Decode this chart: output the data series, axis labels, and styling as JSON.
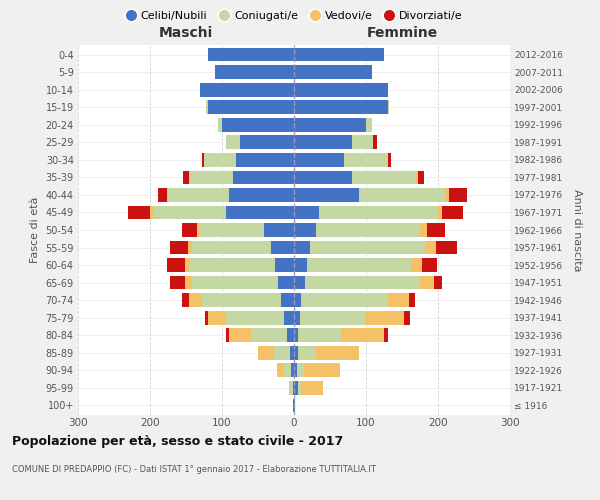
{
  "age_groups": [
    "100+",
    "95-99",
    "90-94",
    "85-89",
    "80-84",
    "75-79",
    "70-74",
    "65-69",
    "60-64",
    "55-59",
    "50-54",
    "45-49",
    "40-44",
    "35-39",
    "30-34",
    "25-29",
    "20-24",
    "15-19",
    "10-14",
    "5-9",
    "0-4"
  ],
  "birth_years": [
    "≤ 1916",
    "1917-1921",
    "1922-1926",
    "1927-1931",
    "1932-1936",
    "1937-1941",
    "1942-1946",
    "1947-1951",
    "1952-1956",
    "1957-1961",
    "1962-1966",
    "1967-1971",
    "1972-1976",
    "1977-1981",
    "1982-1986",
    "1987-1991",
    "1992-1996",
    "1997-2001",
    "2002-2006",
    "2007-2011",
    "2012-2016"
  ],
  "maschi_celibe": [
    1,
    2,
    4,
    6,
    10,
    14,
    18,
    22,
    26,
    32,
    42,
    95,
    90,
    85,
    80,
    75,
    100,
    120,
    130,
    110,
    120
  ],
  "maschi_coniugato": [
    0,
    3,
    10,
    22,
    50,
    80,
    110,
    120,
    120,
    110,
    90,
    100,
    85,
    60,
    45,
    20,
    5,
    2,
    0,
    0,
    0
  ],
  "maschi_vedovo": [
    0,
    2,
    10,
    22,
    30,
    25,
    18,
    10,
    5,
    5,
    3,
    5,
    2,
    1,
    0,
    0,
    0,
    0,
    0,
    0,
    0
  ],
  "maschi_divorziato": [
    0,
    0,
    0,
    0,
    5,
    5,
    10,
    20,
    25,
    25,
    20,
    30,
    12,
    8,
    3,
    0,
    0,
    0,
    0,
    0,
    0
  ],
  "femmine_nubile": [
    1,
    5,
    4,
    5,
    5,
    8,
    10,
    15,
    18,
    22,
    30,
    35,
    90,
    80,
    70,
    80,
    100,
    130,
    130,
    108,
    125
  ],
  "femmine_coniugata": [
    0,
    5,
    10,
    25,
    60,
    90,
    120,
    160,
    145,
    160,
    145,
    165,
    120,
    90,
    60,
    30,
    8,
    2,
    0,
    0,
    0
  ],
  "femmine_vedova": [
    1,
    30,
    50,
    60,
    60,
    55,
    30,
    20,
    15,
    15,
    10,
    5,
    5,
    2,
    0,
    0,
    0,
    0,
    0,
    0,
    0
  ],
  "femmine_divorziata": [
    0,
    0,
    0,
    0,
    5,
    8,
    8,
    10,
    20,
    30,
    25,
    30,
    25,
    8,
    5,
    5,
    0,
    0,
    0,
    0,
    0
  ],
  "color_celibe": "#4472C4",
  "color_coniugato": "#C5D8A3",
  "color_vedovo": "#F5C167",
  "color_divorziato": "#CC1111",
  "xlim": 300,
  "title": "Popolazione per età, sesso e stato civile - 2017",
  "subtitle": "COMUNE DI PREDAPPIO (FC) - Dati ISTAT 1° gennaio 2017 - Elaborazione TUTTITALIA.IT",
  "ylabel_left": "Fasce di età",
  "ylabel_right": "Anni di nascita",
  "label_maschi": "Maschi",
  "label_femmine": "Femmine",
  "legend_labels": [
    "Celibi/Nubili",
    "Coniugati/e",
    "Vedovi/e",
    "Divorziati/e"
  ],
  "bg_color": "#f0f0f0",
  "plot_bg": "#ffffff",
  "grid_color": "#cccccc"
}
